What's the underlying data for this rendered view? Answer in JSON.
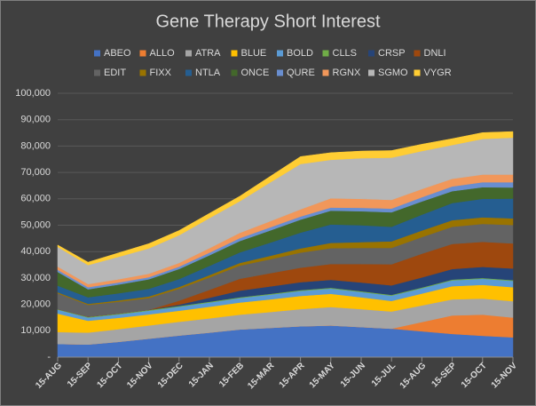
{
  "chart_data": {
    "type": "stacked_area",
    "title": "Gene Therapy Short Interest",
    "categories": [
      "15-AUG",
      "15-SEP",
      "15-OCT",
      "15-NOV",
      "15-DEC",
      "15-JAN",
      "15-FEB",
      "15-MAR",
      "15-APR",
      "15-MAY",
      "15-JUN",
      "15-JUL",
      "15-AUG",
      "15-SEP",
      "15-OCT",
      "15-NOV"
    ],
    "series": [
      {
        "name": "ABEO",
        "color": "#4472c4",
        "values": [
          5000,
          4800,
          5800,
          7000,
          8200,
          9300,
          10500,
          11100,
          11700,
          12000,
          11400,
          10800,
          9800,
          8800,
          8100,
          7500
        ]
      },
      {
        "name": "ALLO",
        "color": "#ed7d31",
        "values": [
          0,
          0,
          0,
          0,
          0,
          0,
          0,
          0,
          0,
          0,
          0,
          0,
          3500,
          7000,
          8000,
          7500
        ]
      },
      {
        "name": "ATRA",
        "color": "#a5a5a5",
        "values": [
          4500,
          4500,
          4800,
          5000,
          5200,
          5400,
          5600,
          6000,
          6500,
          7000,
          6800,
          6500,
          6300,
          6100,
          6100,
          6200
        ]
      },
      {
        "name": "BLUE",
        "color": "#ffc000",
        "values": [
          7000,
          4500,
          4300,
          4200,
          4200,
          4400,
          4600,
          4800,
          5000,
          5000,
          4500,
          4000,
          4500,
          5000,
          5200,
          5300
        ]
      },
      {
        "name": "BOLD",
        "color": "#5b9bd5",
        "values": [
          1500,
          1200,
          1300,
          1400,
          1500,
          1600,
          1700,
          1800,
          1900,
          2000,
          2000,
          2000,
          2000,
          2200,
          2300,
          2400
        ]
      },
      {
        "name": "CLLS",
        "color": "#70ad47",
        "values": [
          200,
          300,
          300,
          300,
          300,
          300,
          300,
          300,
          300,
          300,
          300,
          300,
          300,
          300,
          300,
          300
        ]
      },
      {
        "name": "CRSP",
        "color": "#264478",
        "values": [
          0,
          0,
          0,
          0,
          500,
          1500,
          2500,
          2800,
          3000,
          3000,
          3300,
          3600,
          3800,
          4000,
          4200,
          4400
        ]
      },
      {
        "name": "DNLI",
        "color": "#9e480e",
        "values": [
          0,
          0,
          0,
          0,
          1500,
          3000,
          4500,
          5000,
          5500,
          6000,
          7000,
          8000,
          9000,
          9500,
          9500,
          9500
        ]
      },
      {
        "name": "EDIT",
        "color": "#636363",
        "values": [
          6000,
          4500,
          4500,
          4500,
          4500,
          4700,
          5000,
          5300,
          5700,
          6000,
          6100,
          6200,
          6300,
          6500,
          6800,
          7000
        ]
      },
      {
        "name": "FIXX",
        "color": "#997300",
        "values": [
          400,
          400,
          500,
          600,
          700,
          900,
          1000,
          1300,
          1600,
          2000,
          2200,
          2500,
          2500,
          2500,
          2500,
          2500
        ]
      },
      {
        "name": "NTLA",
        "color": "#255e91",
        "values": [
          2500,
          2500,
          2700,
          2900,
          3000,
          3500,
          4000,
          5000,
          6000,
          7000,
          6400,
          5500,
          6000,
          6500,
          7000,
          7500
        ]
      },
      {
        "name": "ONCE",
        "color": "#43682b",
        "values": [
          5200,
          3000,
          3300,
          3600,
          3800,
          4000,
          4300,
          4600,
          4900,
          5200,
          5300,
          5500,
          5000,
          4500,
          4400,
          4200
        ]
      },
      {
        "name": "QURE",
        "color": "#698ed0",
        "values": [
          800,
          800,
          800,
          800,
          900,
          1000,
          1100,
          1200,
          1200,
          1200,
          1300,
          1400,
          1600,
          1800,
          1900,
          2000
        ]
      },
      {
        "name": "RGNX",
        "color": "#f1975a",
        "values": [
          1200,
          1200,
          1200,
          1300,
          1400,
          1700,
          2000,
          2300,
          2700,
          3500,
          3400,
          3300,
          3100,
          2900,
          2900,
          2900
        ]
      },
      {
        "name": "SGMO",
        "color": "#b7b7b7",
        "values": [
          7500,
          7200,
          8500,
          9600,
          10500,
          11400,
          12000,
          14700,
          17200,
          14600,
          15400,
          16000,
          14400,
          12800,
          13500,
          14000
        ]
      },
      {
        "name": "VYGR",
        "color": "#ffcd33",
        "values": [
          700,
          1100,
          1500,
          1800,
          1800,
          1800,
          1900,
          2300,
          2800,
          2700,
          2700,
          2700,
          2600,
          2400,
          2400,
          2300
        ]
      }
    ],
    "ylim": [
      0,
      100000
    ],
    "yticks": [
      {
        "value": 0,
        "label": "-"
      },
      {
        "value": 10000,
        "label": "10,000"
      },
      {
        "value": 20000,
        "label": "20,000"
      },
      {
        "value": 30000,
        "label": "30,000"
      },
      {
        "value": 40000,
        "label": "40,000"
      },
      {
        "value": 50000,
        "label": "50,000"
      },
      {
        "value": 60000,
        "label": "60,000"
      },
      {
        "value": 70000,
        "label": "70,000"
      },
      {
        "value": 80000,
        "label": "80,000"
      },
      {
        "value": 90000,
        "label": "90,000"
      },
      {
        "value": 100000,
        "label": "100,000"
      }
    ],
    "grid": true
  }
}
